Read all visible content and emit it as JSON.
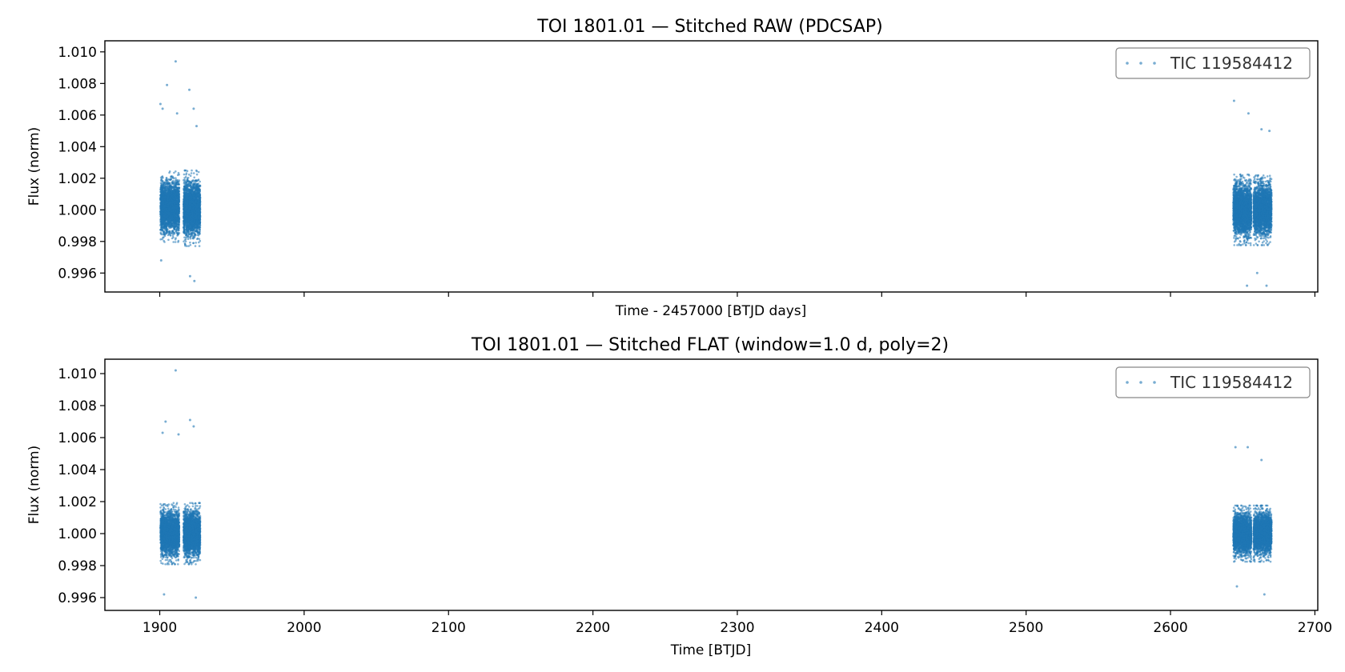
{
  "chart_data": [
    {
      "type": "scatter",
      "title": "TOI 1801.01 — Stitched RAW (PDCSAP)",
      "xlabel": "Time - 2457000 [BTJD days]",
      "ylabel": "Flux (norm)",
      "xlim": [
        1862,
        2702
      ],
      "ylim": [
        0.9948,
        1.0107
      ],
      "yticks": [
        "0.996",
        "0.998",
        "1.000",
        "1.002",
        "1.004",
        "1.006",
        "1.008",
        "1.010"
      ],
      "xticks_labeled": false,
      "legend": {
        "location": "top-right",
        "entries": [
          "TIC 119584412"
        ]
      },
      "grid": false,
      "series": [
        {
          "name": "TIC 119584412",
          "color": "#1f77b4",
          "segments": [
            {
              "x_range": [
                1900.5,
                1913.5
              ],
              "y_center": 1.0002,
              "y_spread": 0.0014
            },
            {
              "x_range": [
                1916.5,
                1928.0
              ],
              "y_center": 1.0001,
              "y_spread": 0.0015
            },
            {
              "x_range": [
                2643.5,
                2656.0
              ],
              "y_center": 1.0,
              "y_spread": 0.0014
            },
            {
              "x_range": [
                2657.5,
                2670.0
              ],
              "y_center": 1.0,
              "y_spread": 0.0014
            }
          ],
          "outliers": [
            {
              "x": 1911.0,
              "y": 1.0094
            },
            {
              "x": 1905.0,
              "y": 1.0079
            },
            {
              "x": 1920.5,
              "y": 1.0076
            },
            {
              "x": 1900.5,
              "y": 1.0067
            },
            {
              "x": 1902.0,
              "y": 1.0064
            },
            {
              "x": 1923.5,
              "y": 1.0064
            },
            {
              "x": 1912.0,
              "y": 1.0061
            },
            {
              "x": 1925.5,
              "y": 1.0053
            },
            {
              "x": 1924.0,
              "y": 0.9955
            },
            {
              "x": 1921.0,
              "y": 0.9958
            },
            {
              "x": 1901.0,
              "y": 0.9968
            },
            {
              "x": 2644.0,
              "y": 1.0069
            },
            {
              "x": 2654.0,
              "y": 1.0061
            },
            {
              "x": 2663.0,
              "y": 1.0051
            },
            {
              "x": 2668.5,
              "y": 1.005
            },
            {
              "x": 2653.0,
              "y": 0.9952
            },
            {
              "x": 2666.5,
              "y": 0.9952
            },
            {
              "x": 2660.0,
              "y": 0.996
            }
          ]
        }
      ]
    },
    {
      "type": "scatter",
      "title": "TOI 1801.01 — Stitched FLAT (window=1.0 d, poly=2)",
      "xlabel": "Time [BTJD]",
      "ylabel": "Flux (norm)",
      "xlim": [
        1862,
        2702
      ],
      "ylim": [
        0.9952,
        1.0109
      ],
      "xticks": [
        "1900",
        "2000",
        "2100",
        "2200",
        "2300",
        "2400",
        "2500",
        "2600",
        "2700"
      ],
      "yticks": [
        "0.996",
        "0.998",
        "1.000",
        "1.002",
        "1.004",
        "1.006",
        "1.008",
        "1.010"
      ],
      "legend": {
        "location": "top-right",
        "entries": [
          "TIC 119584412"
        ]
      },
      "grid": false,
      "series": [
        {
          "name": "TIC 119584412",
          "color": "#1f77b4",
          "segments": [
            {
              "x_range": [
                1900.5,
                1913.5
              ],
              "y_center": 1.0,
              "y_spread": 0.0012
            },
            {
              "x_range": [
                1916.5,
                1928.0
              ],
              "y_center": 1.0,
              "y_spread": 0.0012
            },
            {
              "x_range": [
                2643.5,
                2656.0
              ],
              "y_center": 1.0,
              "y_spread": 0.0011
            },
            {
              "x_range": [
                2657.5,
                2670.0
              ],
              "y_center": 1.0,
              "y_spread": 0.0011
            }
          ],
          "outliers": [
            {
              "x": 1911.0,
              "y": 1.0102
            },
            {
              "x": 1904.0,
              "y": 1.007
            },
            {
              "x": 1921.0,
              "y": 1.0071
            },
            {
              "x": 1902.0,
              "y": 1.0063
            },
            {
              "x": 1913.0,
              "y": 1.0062
            },
            {
              "x": 1923.5,
              "y": 1.0067
            },
            {
              "x": 1925.0,
              "y": 0.996
            },
            {
              "x": 1903.0,
              "y": 0.9962
            },
            {
              "x": 2645.0,
              "y": 1.0054
            },
            {
              "x": 2653.5,
              "y": 1.0054
            },
            {
              "x": 2663.0,
              "y": 1.0046
            },
            {
              "x": 2646.0,
              "y": 0.9967
            },
            {
              "x": 2665.0,
              "y": 0.9962
            }
          ]
        }
      ]
    }
  ]
}
